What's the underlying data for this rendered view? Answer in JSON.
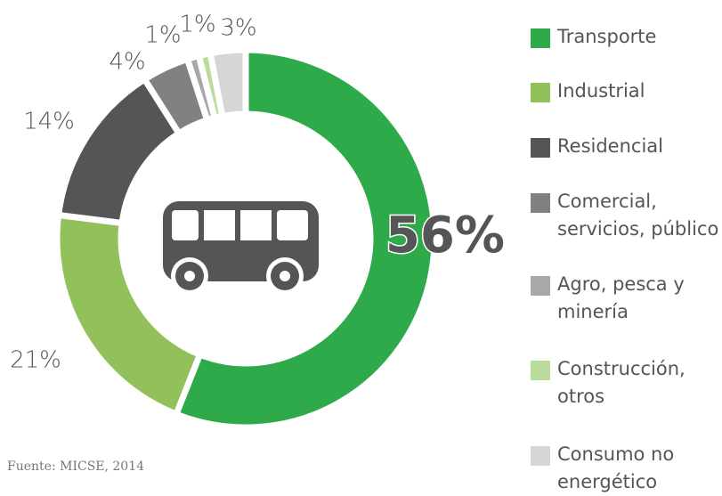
{
  "chart_data": {
    "type": "donut",
    "categories": [
      "Transporte",
      "Industrial",
      "Residencial",
      "Comercial, servicios, público",
      "Agro, pesca y minería",
      "Construcción, otros",
      "Consumo no energético"
    ],
    "values": [
      56,
      21,
      14,
      4,
      1,
      1,
      3
    ],
    "value_labels": [
      "56%",
      "21%",
      "14%",
      "4%",
      "1%",
      "1%",
      "3%"
    ],
    "colors": [
      "#2eaa4a",
      "#92c15c",
      "#555557",
      "#818184",
      "#a8a8ac",
      "#b9dc9c",
      "#d6d6d8"
    ],
    "source": "Fuente: MICSE, 2014"
  }
}
